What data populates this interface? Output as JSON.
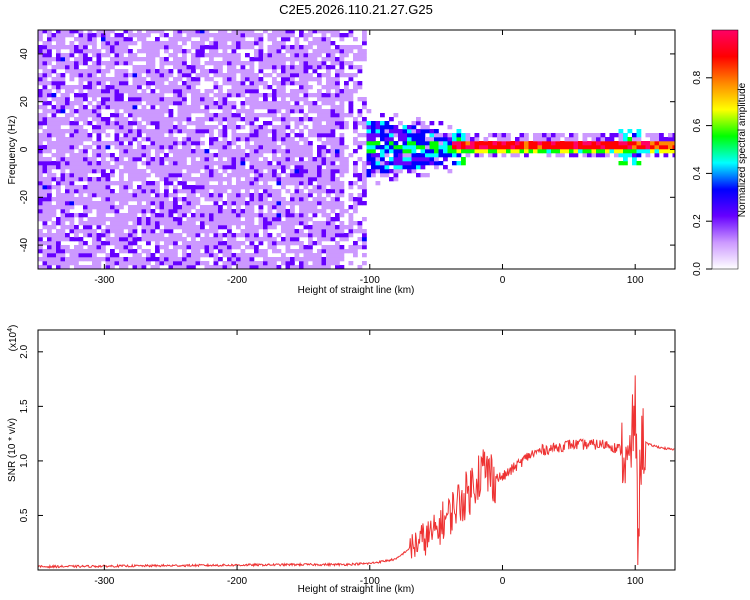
{
  "title": "C2E5.2026.110.21.27.G25",
  "chart_data": [
    {
      "type": "heatmap",
      "xlabel": "Height of straight line (km)",
      "ylabel": "Frequency (Hz)",
      "xlim": [
        -350,
        130
      ],
      "ylim": [
        -50,
        50
      ],
      "x_ticks": [
        "-300",
        "-200",
        "-100",
        "0",
        "100"
      ],
      "x_tick_values": [
        -300,
        -200,
        -100,
        0,
        100
      ],
      "y_ticks": [
        "40",
        "20",
        "0",
        "-20",
        "-40"
      ],
      "y_tick_values": [
        40,
        20,
        0,
        -20,
        -40
      ],
      "colorbar": {
        "label": "Normalized spectral amplitude",
        "range": [
          0,
          1
        ],
        "ticks": [
          "0.0",
          "0.2",
          "0.4",
          "0.6",
          "0.8"
        ],
        "tick_values": [
          0,
          0.2,
          0.4,
          0.6,
          0.8
        ],
        "colors": [
          "#ffffff",
          "#cc99ff",
          "#6600ff",
          "#0000ff",
          "#00ffff",
          "#00ff00",
          "#ffff00",
          "#ff8800",
          "#ff0000",
          "#ff0066"
        ]
      },
      "regions": [
        {
          "x_range": [
            -350,
            -105
          ],
          "freq_range": [
            -50,
            50
          ],
          "level": "low noise"
        },
        {
          "x_range": [
            -105,
            -40
          ],
          "freq_range": [
            -12,
            12
          ],
          "level": "medium"
        },
        {
          "x_range": [
            -40,
            130
          ],
          "freq_range": [
            -3,
            3
          ],
          "level": "high",
          "peak_freq_hz": 0.5
        }
      ],
      "grid": false
    },
    {
      "type": "line",
      "xlabel": "Height of straight line (km)",
      "ylabel": "SNR (10 * v/v)",
      "y_multiplier": "(x10",
      "y_multiplier_exp": "4",
      "y_multiplier_close": ")",
      "xlim": [
        -350,
        130
      ],
      "ylim": [
        0,
        2.2
      ],
      "x_ticks": [
        "-300",
        "-200",
        "-100",
        "0",
        "100"
      ],
      "x_tick_values": [
        -300,
        -200,
        -100,
        0,
        100
      ],
      "y_ticks": [
        "2.0",
        "1.5",
        "1.0",
        "0.5"
      ],
      "y_tick_values": [
        2.0,
        1.5,
        1.0,
        0.5
      ],
      "color": "#ee3333",
      "series": [
        {
          "x": [
            -350,
            -300,
            -250,
            -200,
            -150,
            -120,
            -100,
            -80,
            -70,
            -60,
            -50,
            -45,
            -40,
            -35,
            -30,
            -25,
            -20,
            -15,
            -10,
            -5,
            0,
            10,
            20,
            30,
            40,
            50,
            60,
            70,
            80,
            85,
            90,
            95,
            100,
            102,
            105,
            110,
            120,
            130
          ],
          "values": [
            0.03,
            0.035,
            0.04,
            0.045,
            0.05,
            0.05,
            0.06,
            0.1,
            0.2,
            0.28,
            0.35,
            0.45,
            0.5,
            0.6,
            0.65,
            0.72,
            0.85,
            0.92,
            0.88,
            0.85,
            0.85,
            0.95,
            1.05,
            1.1,
            1.12,
            1.15,
            1.15,
            1.15,
            1.15,
            1.12,
            1.1,
            0.9,
            1.5,
            0.35,
            1.2,
            1.15,
            1.12,
            1.1
          ]
        }
      ]
    }
  ]
}
